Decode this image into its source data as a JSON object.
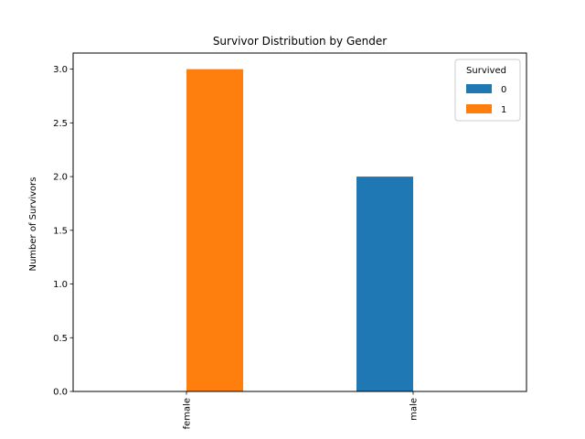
{
  "chart_data": {
    "type": "bar",
    "title": "Survivor Distribution by Gender",
    "xlabel": "",
    "ylabel": "Number of Survivors",
    "categories": [
      "female",
      "male"
    ],
    "series": [
      {
        "name": "0",
        "values": [
          0,
          2
        ],
        "color": "#1f77b4"
      },
      {
        "name": "1",
        "values": [
          3,
          0
        ],
        "color": "#ff7f0e"
      }
    ],
    "ylim": [
      0,
      3.15
    ],
    "yticks": [
      "0.0",
      "0.5",
      "1.0",
      "1.5",
      "2.0",
      "2.5",
      "3.0"
    ],
    "grid": false,
    "legend": {
      "title": "Survived",
      "placement": "top-right"
    }
  }
}
